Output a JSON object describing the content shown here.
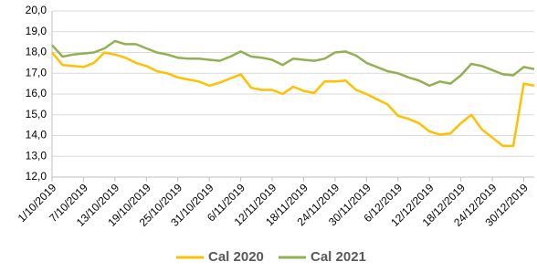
{
  "chart_data": {
    "type": "line",
    "categories": [
      "1/10/2019",
      null,
      null,
      "7/10/2019",
      null,
      null,
      "13/10/2019",
      null,
      null,
      "19/10/2019",
      null,
      null,
      "25/10/2019",
      null,
      null,
      "31/10/2019",
      null,
      null,
      "6/11/2019",
      null,
      null,
      "12/11/2019",
      null,
      null,
      "18/11/2019",
      null,
      null,
      "24/11/2019",
      null,
      null,
      "30/11/2019",
      null,
      null,
      "6/12/2019",
      null,
      null,
      "12/12/2019",
      null,
      null,
      "18/12/2019",
      null,
      null,
      "24/12/2019",
      null,
      null,
      "30/12/2019",
      null
    ],
    "series": [
      {
        "name": "Cal 2020",
        "color": "#ffc000",
        "values": [
          18.0,
          17.4,
          17.35,
          17.3,
          17.5,
          18.0,
          17.9,
          17.75,
          17.5,
          17.35,
          17.1,
          17.0,
          16.8,
          16.7,
          16.6,
          16.4,
          16.55,
          16.75,
          16.95,
          16.3,
          16.2,
          16.2,
          16.0,
          16.35,
          16.15,
          16.05,
          16.6,
          16.6,
          16.65,
          16.2,
          16.0,
          15.75,
          15.5,
          14.95,
          14.8,
          14.6,
          14.2,
          14.05,
          14.1,
          14.6,
          15.0,
          14.3,
          13.9,
          13.5,
          13.5,
          16.5,
          16.4
        ]
      },
      {
        "name": "Cal 2021",
        "color": "#92b050",
        "values": [
          18.35,
          17.8,
          17.9,
          17.95,
          18.0,
          18.2,
          18.55,
          18.4,
          18.4,
          18.2,
          18.0,
          17.9,
          17.75,
          17.7,
          17.7,
          17.65,
          17.6,
          17.8,
          18.05,
          17.8,
          17.75,
          17.65,
          17.4,
          17.7,
          17.65,
          17.6,
          17.7,
          18.0,
          18.05,
          17.85,
          17.5,
          17.3,
          17.1,
          17.0,
          16.8,
          16.65,
          16.4,
          16.6,
          16.5,
          16.9,
          17.45,
          17.35,
          17.15,
          16.95,
          16.9,
          17.3,
          17.2
        ]
      }
    ],
    "ylim": [
      12,
      20
    ],
    "yticks": [
      {
        "value": 12,
        "label": "12,0"
      },
      {
        "value": 13,
        "label": "13,0"
      },
      {
        "value": 14,
        "label": "14,0"
      },
      {
        "value": 15,
        "label": "15,0"
      },
      {
        "value": 16,
        "label": "16,0"
      },
      {
        "value": 17,
        "label": "17,0"
      },
      {
        "value": 18,
        "label": "18,0"
      },
      {
        "value": 19,
        "label": "19,0"
      },
      {
        "value": 20,
        "label": "20,0"
      }
    ],
    "grid": true,
    "legend": "bottom"
  }
}
